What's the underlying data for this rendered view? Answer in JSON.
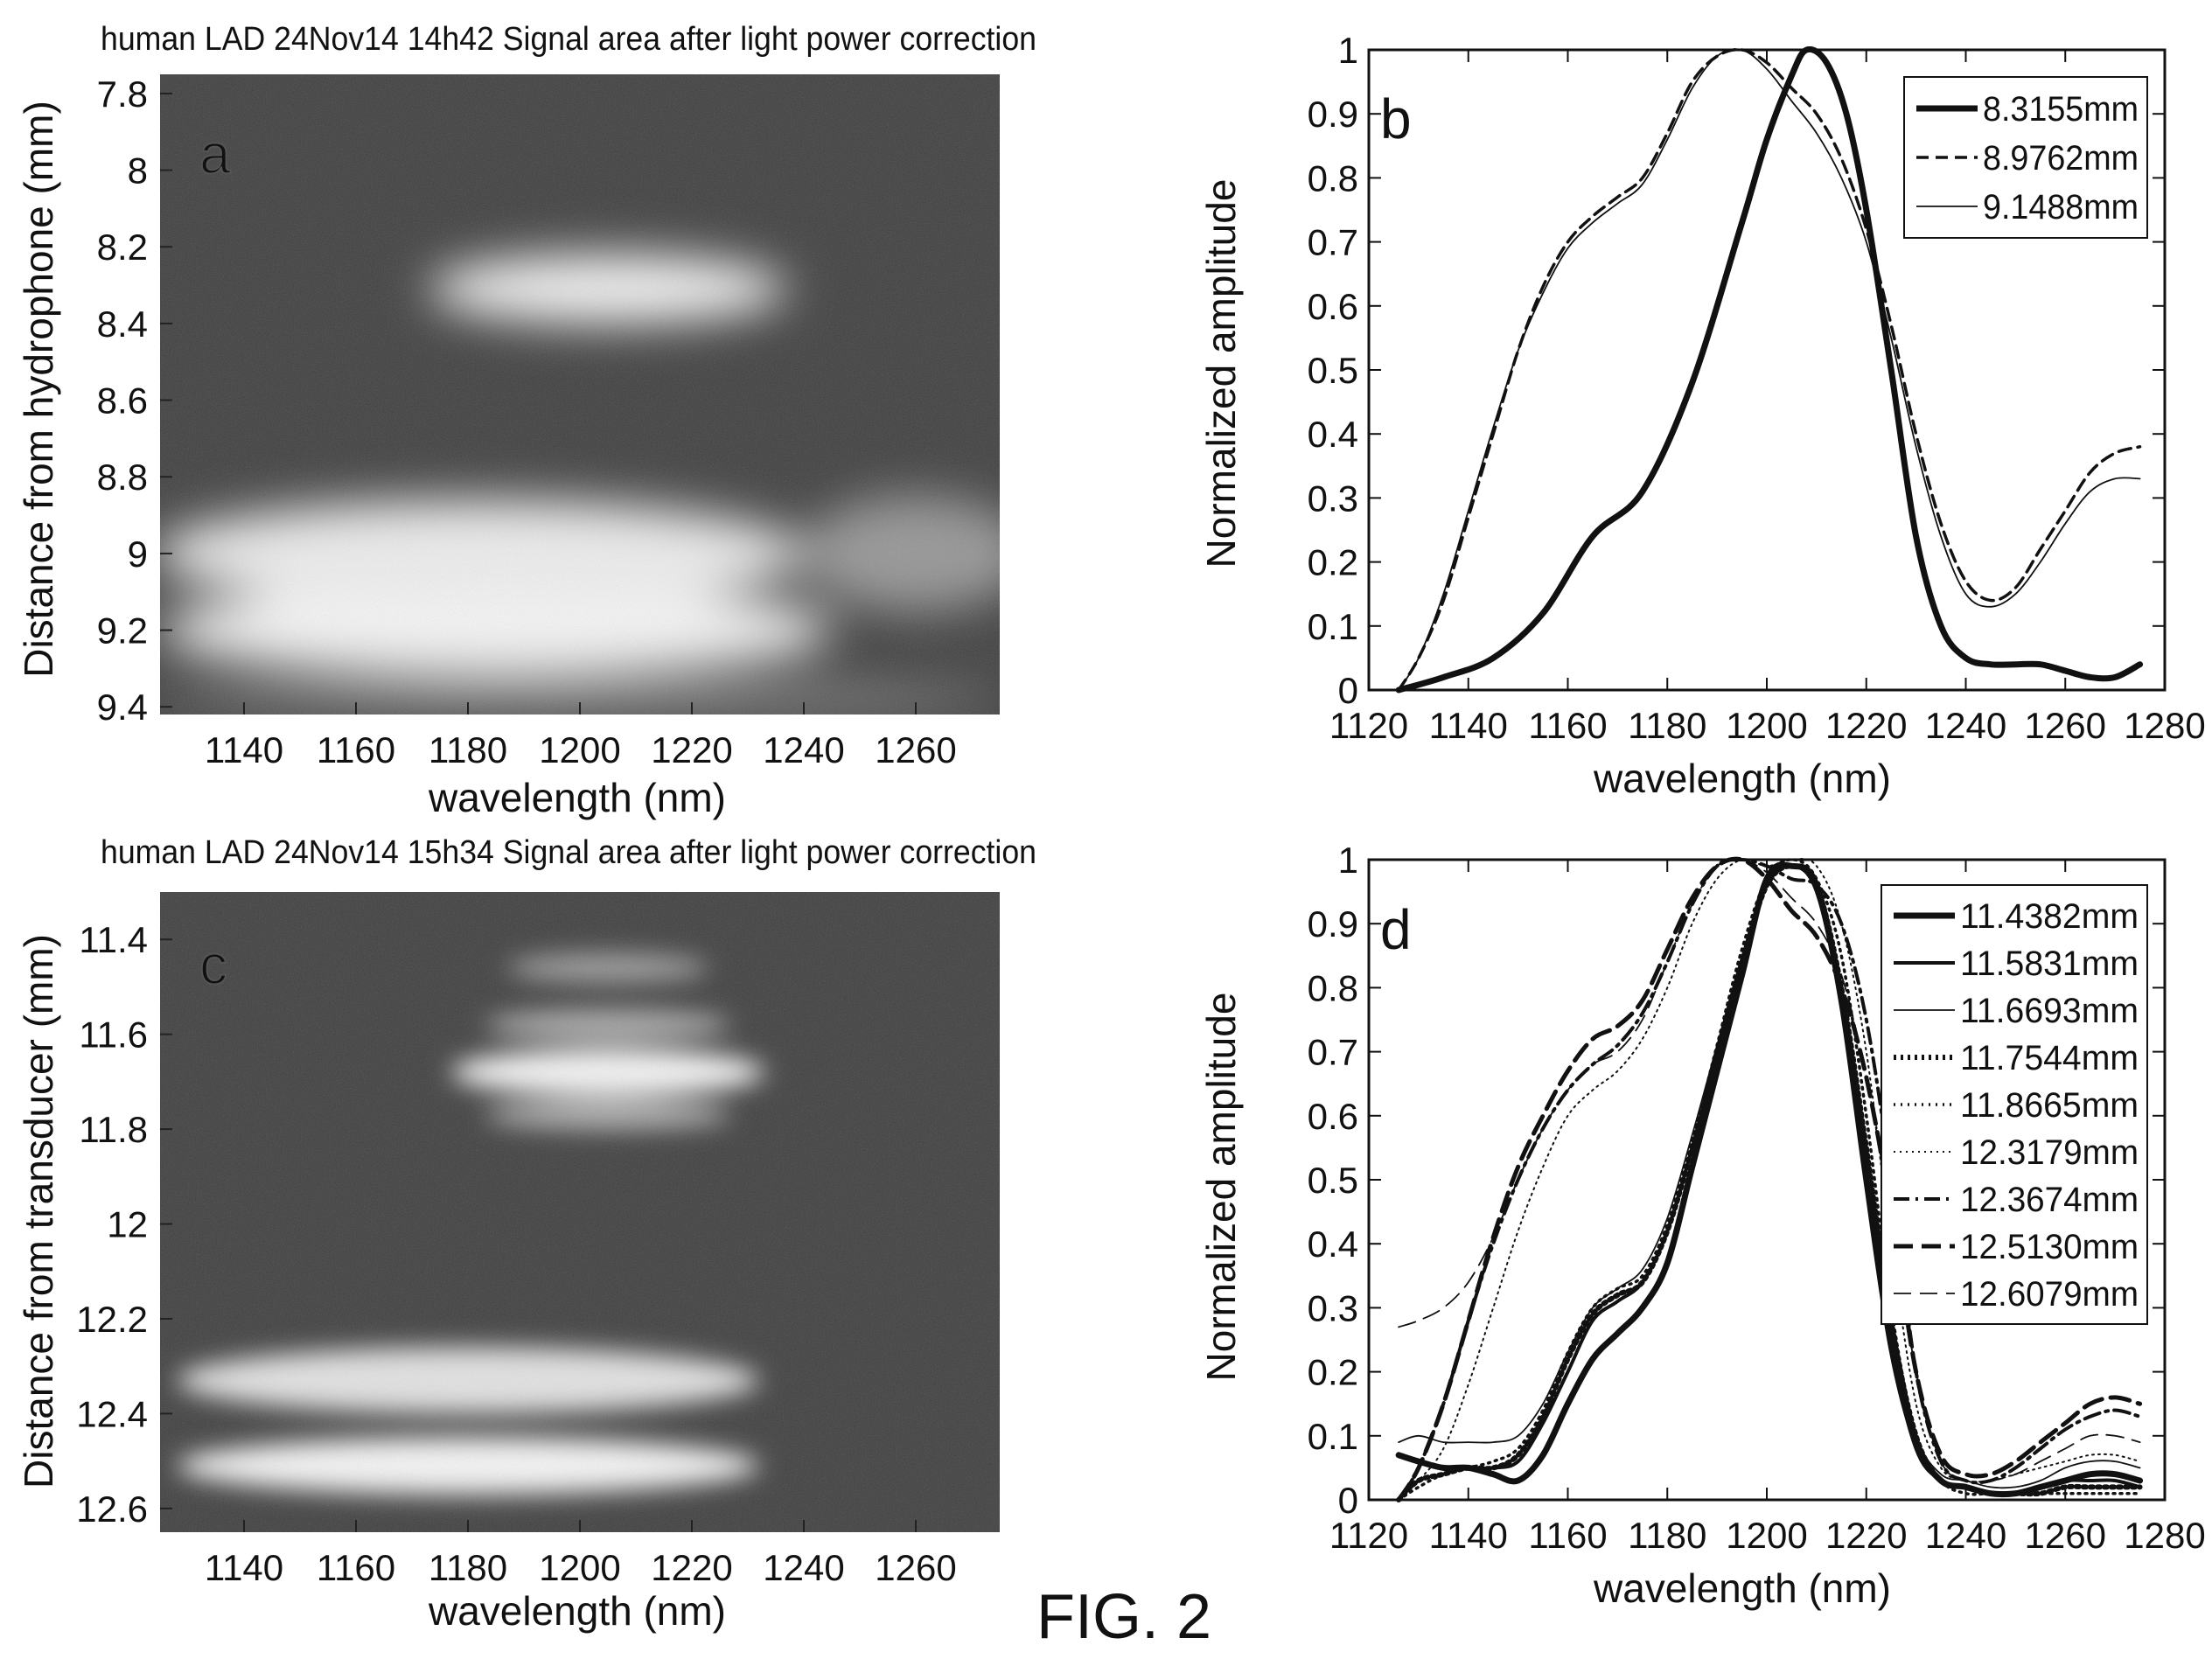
{
  "figure_label": "FIG. 2",
  "chart_data": [
    {
      "id": "a",
      "type": "heatmap",
      "panel_letter": "a",
      "title": "human LAD 24Nov14 14h42 Signal area after light power correction",
      "xlabel": "wavelength (nm)",
      "ylabel": "Distance from hydrophone (mm)",
      "xlim": [
        1125,
        1275
      ],
      "ylim": [
        7.75,
        9.42
      ],
      "y_inverted": true,
      "xticks": [
        1140,
        1160,
        1180,
        1200,
        1220,
        1240,
        1260
      ],
      "yticks": [
        7.8,
        8,
        8.2,
        8.4,
        8.6,
        8.8,
        9,
        9.2,
        9.4
      ],
      "colormap": "gray",
      "bright_regions": [
        {
          "x_center": 1205,
          "y_center": 8.31,
          "x_halfwidth": 32,
          "y_halfwidth": 0.09,
          "intensity": 0.95
        },
        {
          "x_center": 1182,
          "y_center": 9.0,
          "x_halfwidth": 58,
          "y_halfwidth": 0.14,
          "intensity": 0.9
        },
        {
          "x_center": 1185,
          "y_center": 9.2,
          "x_halfwidth": 60,
          "y_halfwidth": 0.12,
          "intensity": 0.95
        },
        {
          "x_center": 1260,
          "y_center": 9.0,
          "x_halfwidth": 20,
          "y_halfwidth": 0.15,
          "intensity": 0.45
        },
        {
          "x_center": 1200,
          "y_center": 9.38,
          "x_halfwidth": 75,
          "y_halfwidth": 0.03,
          "intensity": 0.5
        }
      ]
    },
    {
      "id": "b",
      "type": "line",
      "panel_letter": "b",
      "xlabel": "wavelength (nm)",
      "ylabel": "Normalized amplitude",
      "xlim": [
        1120,
        1280
      ],
      "ylim": [
        0,
        1
      ],
      "xticks": [
        1120,
        1140,
        1160,
        1180,
        1200,
        1220,
        1240,
        1260,
        1280
      ],
      "yticks": [
        0,
        0.1,
        0.2,
        0.3,
        0.4,
        0.5,
        0.6,
        0.7,
        0.8,
        0.9,
        1
      ],
      "legend_position": "top-right",
      "series": [
        {
          "name": "8.3155mm",
          "style": "thick",
          "x": [
            1126,
            1135,
            1145,
            1155,
            1165,
            1175,
            1185,
            1195,
            1200,
            1205,
            1208,
            1212,
            1216,
            1220,
            1225,
            1230,
            1235,
            1240,
            1245,
            1250,
            1255,
            1260,
            1265,
            1270,
            1275
          ],
          "y": [
            0,
            0.02,
            0.05,
            0.12,
            0.24,
            0.31,
            0.48,
            0.73,
            0.86,
            0.96,
            1.0,
            0.98,
            0.9,
            0.75,
            0.5,
            0.24,
            0.1,
            0.05,
            0.04,
            0.04,
            0.04,
            0.03,
            0.02,
            0.02,
            0.04
          ]
        },
        {
          "name": "8.9762mm",
          "style": "dashed",
          "x": [
            1126,
            1130,
            1135,
            1140,
            1145,
            1150,
            1155,
            1160,
            1165,
            1170,
            1175,
            1180,
            1185,
            1190,
            1195,
            1200,
            1205,
            1210,
            1215,
            1220,
            1225,
            1230,
            1235,
            1240,
            1245,
            1250,
            1255,
            1260,
            1265,
            1270,
            1275
          ],
          "y": [
            0,
            0.05,
            0.14,
            0.27,
            0.4,
            0.53,
            0.63,
            0.7,
            0.74,
            0.77,
            0.8,
            0.87,
            0.95,
            0.99,
            1.0,
            0.98,
            0.94,
            0.9,
            0.83,
            0.72,
            0.57,
            0.4,
            0.26,
            0.17,
            0.14,
            0.16,
            0.22,
            0.28,
            0.34,
            0.37,
            0.38
          ]
        },
        {
          "name": "9.1488mm",
          "style": "thin",
          "x": [
            1126,
            1130,
            1135,
            1140,
            1145,
            1150,
            1155,
            1160,
            1165,
            1170,
            1175,
            1180,
            1185,
            1190,
            1195,
            1200,
            1205,
            1210,
            1215,
            1220,
            1225,
            1230,
            1235,
            1240,
            1245,
            1250,
            1255,
            1260,
            1265,
            1270,
            1275
          ],
          "y": [
            0,
            0.05,
            0.15,
            0.28,
            0.41,
            0.53,
            0.62,
            0.69,
            0.73,
            0.76,
            0.79,
            0.86,
            0.94,
            0.99,
            1.0,
            0.97,
            0.92,
            0.87,
            0.8,
            0.7,
            0.55,
            0.38,
            0.24,
            0.15,
            0.13,
            0.15,
            0.2,
            0.26,
            0.31,
            0.33,
            0.33
          ]
        }
      ]
    },
    {
      "id": "c",
      "type": "heatmap",
      "panel_letter": "c",
      "title": "human LAD 24Nov14 15h34 Signal area after light power correction",
      "xlabel": "wavelength (nm)",
      "ylabel": "Distance from transducer (mm)",
      "xlim": [
        1125,
        1275
      ],
      "ylim": [
        11.3,
        12.65
      ],
      "y_inverted": true,
      "xticks": [
        1140,
        1160,
        1180,
        1200,
        1220,
        1240,
        1260
      ],
      "yticks": [
        11.4,
        11.6,
        11.8,
        12,
        12.2,
        12.4,
        12.6
      ],
      "colormap": "gray",
      "bright_regions": [
        {
          "x_center": 1205,
          "y_center": 11.46,
          "x_halfwidth": 18,
          "y_halfwidth": 0.03,
          "intensity": 0.5
        },
        {
          "x_center": 1205,
          "y_center": 11.58,
          "x_halfwidth": 22,
          "y_halfwidth": 0.03,
          "intensity": 0.6
        },
        {
          "x_center": 1205,
          "y_center": 11.68,
          "x_halfwidth": 28,
          "y_halfwidth": 0.05,
          "intensity": 0.95
        },
        {
          "x_center": 1205,
          "y_center": 11.77,
          "x_halfwidth": 22,
          "y_halfwidth": 0.03,
          "intensity": 0.6
        },
        {
          "x_center": 1180,
          "y_center": 12.33,
          "x_halfwidth": 52,
          "y_halfwidth": 0.07,
          "intensity": 0.85
        },
        {
          "x_center": 1180,
          "y_center": 12.51,
          "x_halfwidth": 52,
          "y_halfwidth": 0.06,
          "intensity": 0.95
        }
      ]
    },
    {
      "id": "d",
      "type": "line",
      "panel_letter": "d",
      "xlabel": "wavelength (nm)",
      "ylabel": "Normalized amplitude",
      "xlim": [
        1120,
        1280
      ],
      "ylim": [
        0,
        1
      ],
      "xticks": [
        1120,
        1140,
        1160,
        1180,
        1200,
        1220,
        1240,
        1260,
        1280
      ],
      "yticks": [
        0,
        0.1,
        0.2,
        0.3,
        0.4,
        0.5,
        0.6,
        0.7,
        0.8,
        0.9,
        1
      ],
      "legend_position": "top-right",
      "series": [
        {
          "name": "11.4382mm",
          "style": "thick",
          "x": [
            1126,
            1130,
            1135,
            1140,
            1145,
            1150,
            1155,
            1160,
            1165,
            1170,
            1175,
            1180,
            1185,
            1190,
            1195,
            1200,
            1205,
            1210,
            1215,
            1220,
            1225,
            1230,
            1235,
            1240,
            1245,
            1250,
            1255,
            1260,
            1265,
            1270,
            1275
          ],
          "y": [
            0.07,
            0.06,
            0.05,
            0.05,
            0.04,
            0.03,
            0.07,
            0.15,
            0.22,
            0.26,
            0.3,
            0.37,
            0.52,
            0.67,
            0.82,
            0.97,
            0.99,
            0.96,
            0.78,
            0.5,
            0.24,
            0.09,
            0.03,
            0.02,
            0.01,
            0.01,
            0.02,
            0.03,
            0.04,
            0.04,
            0.03
          ]
        },
        {
          "name": "11.5831mm",
          "style": "medium",
          "x": [
            1126,
            1130,
            1135,
            1140,
            1145,
            1150,
            1155,
            1160,
            1165,
            1170,
            1175,
            1180,
            1185,
            1190,
            1195,
            1200,
            1205,
            1210,
            1215,
            1220,
            1225,
            1230,
            1235,
            1240,
            1245,
            1250,
            1255,
            1260,
            1265,
            1270,
            1275
          ],
          "y": [
            0.07,
            0.06,
            0.05,
            0.05,
            0.05,
            0.06,
            0.12,
            0.2,
            0.28,
            0.31,
            0.34,
            0.42,
            0.55,
            0.7,
            0.84,
            0.96,
            0.99,
            0.95,
            0.77,
            0.5,
            0.24,
            0.08,
            0.03,
            0.02,
            0.01,
            0.01,
            0.02,
            0.03,
            0.03,
            0.03,
            0.02
          ]
        },
        {
          "name": "11.6693mm",
          "style": "thin",
          "x": [
            1126,
            1130,
            1135,
            1140,
            1145,
            1150,
            1155,
            1160,
            1165,
            1170,
            1175,
            1180,
            1185,
            1190,
            1195,
            1200,
            1205,
            1210,
            1215,
            1220,
            1225,
            1230,
            1235,
            1240,
            1245,
            1250,
            1255,
            1260,
            1265,
            1270,
            1275
          ],
          "y": [
            0.09,
            0.1,
            0.09,
            0.09,
            0.09,
            0.1,
            0.15,
            0.23,
            0.3,
            0.33,
            0.36,
            0.44,
            0.57,
            0.71,
            0.85,
            0.97,
            0.99,
            0.95,
            0.78,
            0.52,
            0.26,
            0.1,
            0.04,
            0.03,
            0.02,
            0.02,
            0.03,
            0.05,
            0.06,
            0.06,
            0.05
          ]
        },
        {
          "name": "11.7544mm",
          "style": "dotted-thick",
          "x": [
            1126,
            1130,
            1135,
            1140,
            1145,
            1150,
            1155,
            1160,
            1165,
            1170,
            1175,
            1180,
            1185,
            1190,
            1195,
            1200,
            1205,
            1210,
            1215,
            1220,
            1225,
            1230,
            1235,
            1240,
            1245,
            1250,
            1255,
            1260,
            1265,
            1270,
            1275
          ],
          "y": [
            0.0,
            0.03,
            0.04,
            0.05,
            0.05,
            0.07,
            0.13,
            0.22,
            0.29,
            0.32,
            0.34,
            0.42,
            0.55,
            0.7,
            0.84,
            0.96,
            0.99,
            0.96,
            0.8,
            0.55,
            0.28,
            0.1,
            0.03,
            0.02,
            0.01,
            0.01,
            0.01,
            0.02,
            0.02,
            0.02,
            0.02
          ]
        },
        {
          "name": "11.8665mm",
          "style": "dotted",
          "x": [
            1126,
            1130,
            1135,
            1140,
            1145,
            1150,
            1155,
            1160,
            1165,
            1170,
            1175,
            1180,
            1185,
            1190,
            1195,
            1200,
            1205,
            1210,
            1215,
            1220,
            1225,
            1230,
            1235,
            1240,
            1245,
            1250,
            1255,
            1260,
            1265,
            1270,
            1275
          ],
          "y": [
            0.0,
            0.02,
            0.04,
            0.05,
            0.06,
            0.08,
            0.14,
            0.23,
            0.3,
            0.33,
            0.35,
            0.43,
            0.56,
            0.71,
            0.86,
            0.97,
            1.0,
            0.97,
            0.85,
            0.6,
            0.3,
            0.1,
            0.03,
            0.01,
            0.01,
            0.01,
            0.01,
            0.01,
            0.01,
            0.01,
            0.01
          ]
        },
        {
          "name": "12.3179mm",
          "style": "dotted-thin",
          "x": [
            1126,
            1130,
            1135,
            1140,
            1145,
            1150,
            1155,
            1160,
            1165,
            1170,
            1175,
            1180,
            1185,
            1190,
            1195,
            1200,
            1205,
            1210,
            1215,
            1220,
            1225,
            1230,
            1235,
            1240,
            1245,
            1250,
            1255,
            1260,
            1265,
            1270,
            1275
          ],
          "y": [
            0.0,
            0.03,
            0.08,
            0.18,
            0.3,
            0.42,
            0.52,
            0.6,
            0.64,
            0.67,
            0.72,
            0.8,
            0.9,
            0.97,
            1.0,
            0.99,
            1.0,
            0.99,
            0.9,
            0.7,
            0.4,
            0.15,
            0.05,
            0.03,
            0.03,
            0.04,
            0.05,
            0.06,
            0.07,
            0.07,
            0.06
          ]
        },
        {
          "name": "12.3674mm",
          "style": "dashdot",
          "x": [
            1126,
            1130,
            1135,
            1140,
            1145,
            1150,
            1155,
            1160,
            1165,
            1170,
            1175,
            1180,
            1185,
            1190,
            1195,
            1200,
            1205,
            1210,
            1215,
            1220,
            1225,
            1230,
            1235,
            1240,
            1245,
            1250,
            1255,
            1260,
            1265,
            1270,
            1275
          ],
          "y": [
            0.0,
            0.05,
            0.15,
            0.28,
            0.4,
            0.5,
            0.58,
            0.64,
            0.68,
            0.71,
            0.76,
            0.84,
            0.93,
            0.99,
            1.0,
            0.99,
            0.97,
            0.96,
            0.9,
            0.75,
            0.5,
            0.2,
            0.06,
            0.03,
            0.03,
            0.05,
            0.08,
            0.11,
            0.13,
            0.14,
            0.13
          ]
        },
        {
          "name": "12.5130mm",
          "style": "dashed-thick",
          "x": [
            1126,
            1130,
            1135,
            1140,
            1145,
            1150,
            1155,
            1160,
            1165,
            1170,
            1175,
            1180,
            1185,
            1190,
            1195,
            1200,
            1205,
            1210,
            1215,
            1220,
            1225,
            1230,
            1235,
            1240,
            1245,
            1250,
            1255,
            1260,
            1265,
            1270,
            1275
          ],
          "y": [
            0.0,
            0.05,
            0.15,
            0.28,
            0.41,
            0.52,
            0.6,
            0.67,
            0.72,
            0.74,
            0.78,
            0.86,
            0.94,
            0.99,
            1.0,
            0.97,
            0.92,
            0.88,
            0.8,
            0.66,
            0.45,
            0.2,
            0.07,
            0.04,
            0.04,
            0.06,
            0.09,
            0.12,
            0.15,
            0.16,
            0.15
          ]
        },
        {
          "name": "12.6079mm",
          "style": "dashed-thin",
          "x": [
            1126,
            1130,
            1135,
            1140,
            1145,
            1150,
            1155,
            1160,
            1165,
            1170,
            1175,
            1180,
            1185,
            1190,
            1195,
            1200,
            1205,
            1210,
            1215,
            1220,
            1225,
            1230,
            1235,
            1240,
            1245,
            1250,
            1255,
            1260,
            1265,
            1270,
            1275
          ],
          "y": [
            0.27,
            0.28,
            0.3,
            0.34,
            0.41,
            0.5,
            0.58,
            0.64,
            0.68,
            0.7,
            0.75,
            0.84,
            0.93,
            0.99,
            1.0,
            0.98,
            0.94,
            0.9,
            0.82,
            0.66,
            0.44,
            0.2,
            0.06,
            0.03,
            0.03,
            0.04,
            0.06,
            0.08,
            0.1,
            0.1,
            0.09
          ]
        }
      ]
    }
  ]
}
